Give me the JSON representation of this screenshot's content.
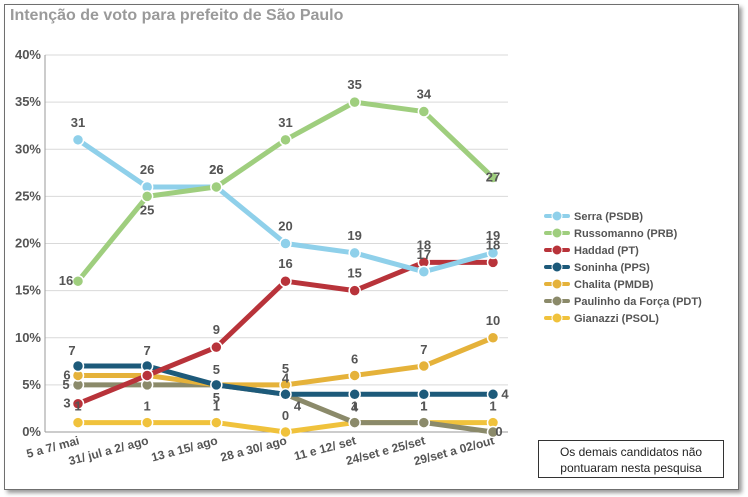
{
  "title": "Intenção de voto para prefeito de São Paulo",
  "note_line1": "Os demais candidatos não",
  "note_line2": "pontuaram nesta pesquisa",
  "chart_data": {
    "type": "line",
    "title": "Intenção de voto para prefeito de São Paulo",
    "categories": [
      "5 a 7/ mai",
      "31/ jul a 2/ ago",
      "13 a 15/ ago",
      "28 a 30/ ago",
      "11 e 12/ set",
      "24/set e 25/set",
      "29/set a 02/out"
    ],
    "y_ticks": [
      "0%",
      "5%",
      "10%",
      "15%",
      "20%",
      "25%",
      "30%",
      "35%",
      "40%"
    ],
    "ylim": [
      0,
      40
    ],
    "grid": true,
    "legend_position": "right",
    "series": [
      {
        "name": "Serra (PSDB)",
        "color": "#8fd0ea",
        "values": [
          31,
          26,
          26,
          20,
          19,
          17,
          19
        ],
        "labels": [
          "31",
          "26",
          "26",
          "20",
          "19",
          "17",
          "19"
        ]
      },
      {
        "name": "Russomanno (PRB)",
        "color": "#9fce7e",
        "values": [
          16,
          25,
          26,
          31,
          35,
          34,
          27
        ],
        "labels": [
          "16",
          "25",
          "26",
          "31",
          "35",
          "34",
          "27"
        ]
      },
      {
        "name": "Haddad (PT)",
        "color": "#b8333a",
        "values": [
          3,
          6,
          9,
          16,
          15,
          18,
          18
        ],
        "labels": [
          "3",
          "",
          "9",
          "16",
          "15",
          "18",
          "18"
        ]
      },
      {
        "name": "Soninha (PPS)",
        "color": "#1d5a7a",
        "values": [
          7,
          7,
          5,
          4,
          4,
          4,
          4
        ],
        "labels": [
          "7",
          "7",
          "5",
          "4",
          "4",
          "",
          "4"
        ]
      },
      {
        "name": "Chalita (PMDB)",
        "color": "#e5b23a",
        "values": [
          6,
          6,
          5,
          5,
          6,
          7,
          10
        ],
        "labels": [
          "6",
          "",
          "",
          "5",
          "6",
          "7",
          "10"
        ]
      },
      {
        "name": "Paulinho da Força (PDT)",
        "color": "#8b8a6a",
        "values": [
          5,
          5,
          5,
          4,
          1,
          1,
          0
        ],
        "labels": [
          "5",
          "",
          "5",
          "4",
          "",
          "1",
          "0"
        ]
      },
      {
        "name": "Gianazzi (PSOL)",
        "color": "#f0c23c",
        "values": [
          1,
          1,
          1,
          0,
          1,
          1,
          1
        ],
        "labels": [
          "1",
          "1",
          "1",
          "0",
          "1",
          "1",
          "1"
        ]
      }
    ]
  }
}
